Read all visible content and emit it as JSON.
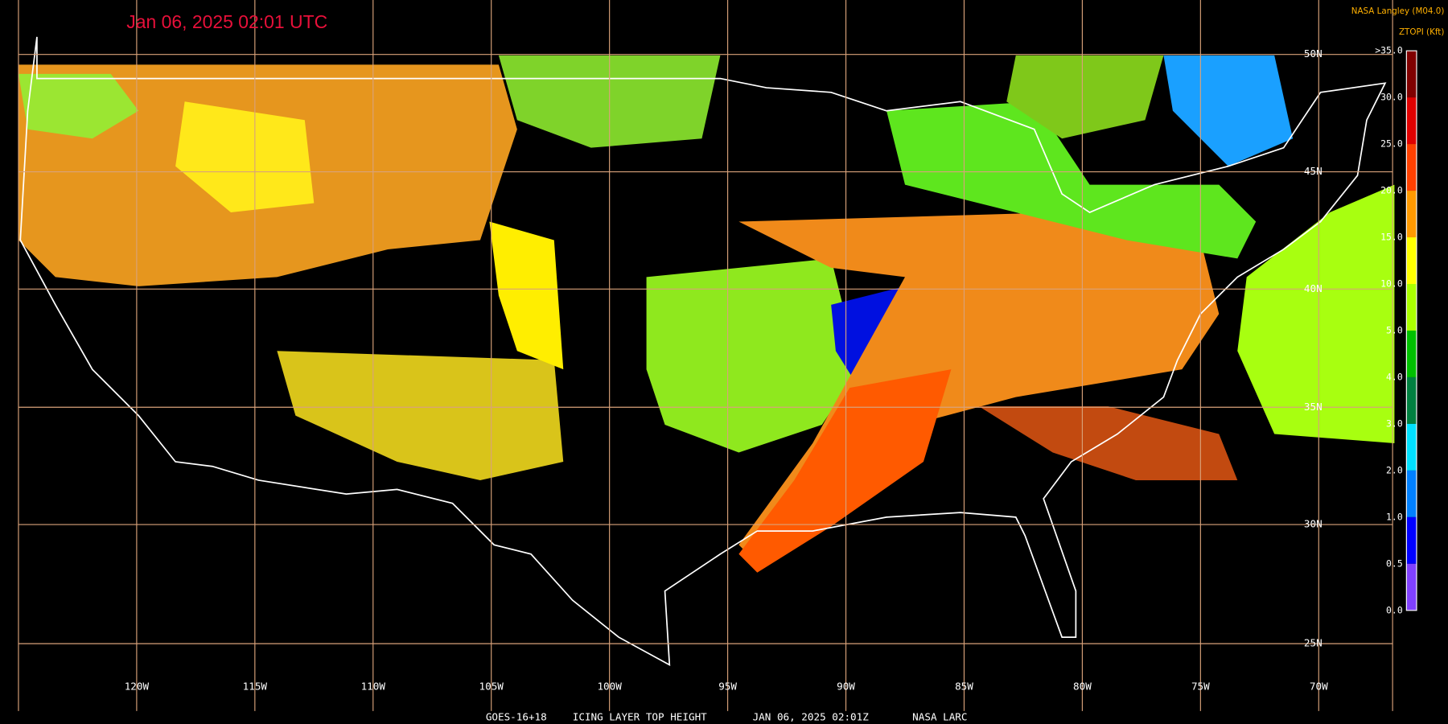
{
  "header": {
    "timestamp": "Jan 06, 2025 02:01 UTC",
    "source": "NASA Langley (M04.0)",
    "product": "ZTOPI (Kft)"
  },
  "legend": {
    "labels": [
      ">35.0",
      "30.0",
      "25.0",
      "20.0",
      "15.0",
      "10.0",
      "5.0",
      "4.0",
      "3.0",
      "2.0",
      "1.0",
      "0.5",
      "0.0"
    ],
    "colors": [
      "#800000",
      "#e00000",
      "#ff4000",
      "#ff9900",
      "#ffff00",
      "#aaff00",
      "#00c000",
      "#008040",
      "#00e0ff",
      "#0080ff",
      "#0000ff",
      "#8040ff"
    ]
  },
  "latitude_labels": [
    "50N",
    "45N",
    "40N",
    "35N",
    "30N",
    "25N"
  ],
  "longitude_labels": [
    "120W",
    "115W",
    "110W",
    "105W",
    "100W",
    "95W",
    "90W",
    "85W",
    "80W",
    "75W",
    "70W"
  ],
  "footer": [
    "GOES-16+18",
    "ICING LAYER TOP HEIGHT",
    "JAN 06, 2025 02:01Z",
    "NASA LARC"
  ]
}
